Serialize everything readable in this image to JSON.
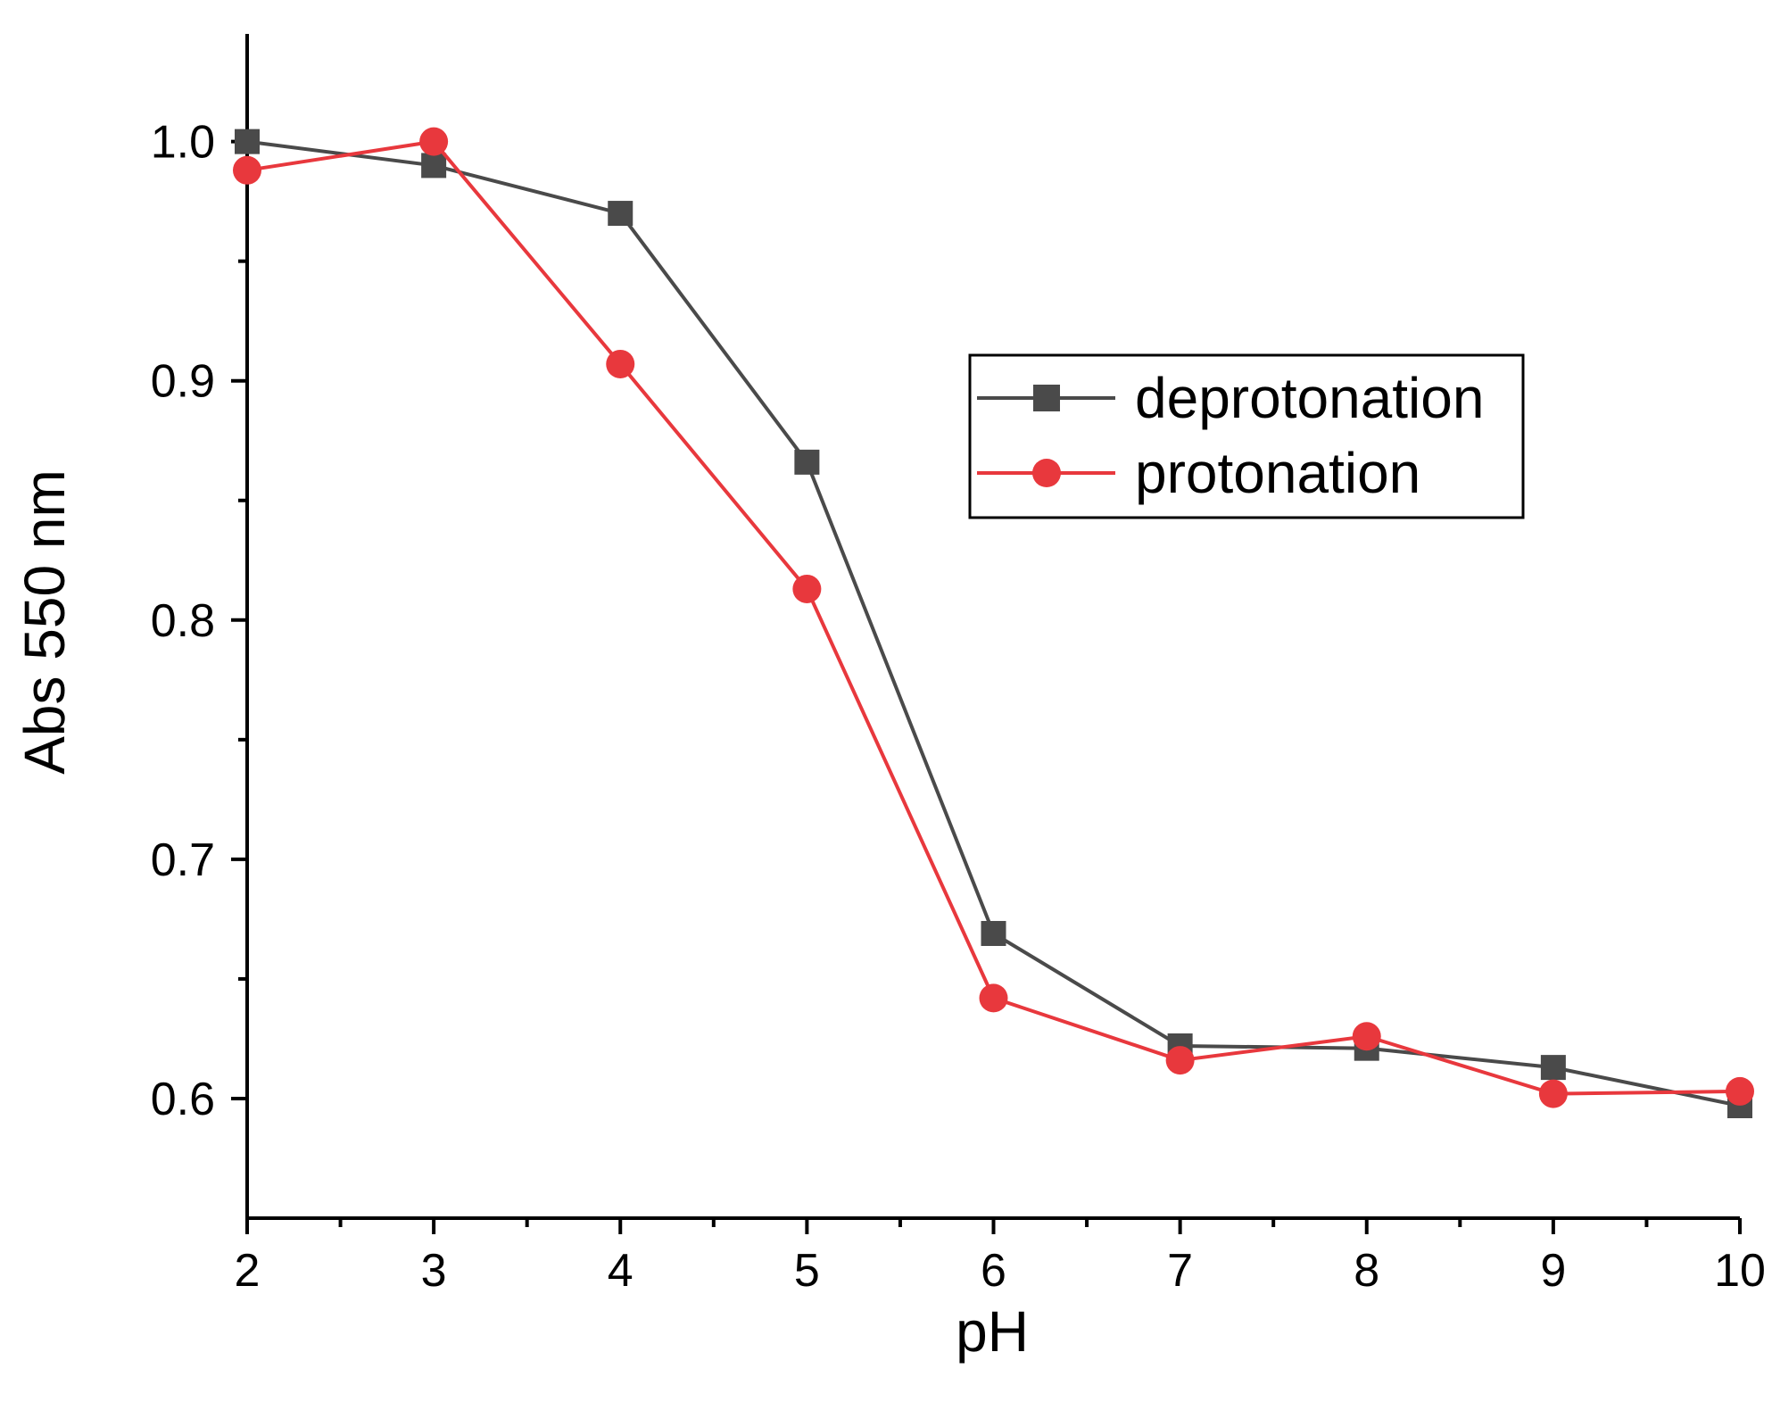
{
  "chart_data": {
    "type": "line",
    "xlabel": "pH",
    "ylabel": "Abs 550 nm",
    "xlim": [
      2,
      10
    ],
    "ylim": [
      0.55,
      1.045
    ],
    "x_ticks": [
      2,
      3,
      4,
      5,
      6,
      7,
      8,
      9,
      10
    ],
    "x_tick_labels": [
      "2",
      "3",
      "4",
      "5",
      "6",
      "7",
      "8",
      "9",
      "10"
    ],
    "y_ticks": [
      0.6,
      0.7,
      0.8,
      0.9,
      1.0
    ],
    "y_tick_labels": [
      "0.6",
      "0.7",
      "0.8",
      "0.9",
      "1.0"
    ],
    "x_minor_ticks": [
      2.5,
      3.5,
      4.5,
      5.5,
      6.5,
      7.5,
      8.5,
      9.5
    ],
    "y_minor_ticks": [
      0.65,
      0.75,
      0.85,
      0.95
    ],
    "grid": false,
    "legend_position": "top-right",
    "series": [
      {
        "name": "deprotonation",
        "color": "#4a4a4a",
        "marker": "square",
        "x": [
          2,
          3,
          4,
          5,
          6,
          7,
          8,
          9,
          10
        ],
        "y": [
          1.0,
          0.99,
          0.97,
          0.866,
          0.669,
          0.622,
          0.621,
          0.613,
          0.597
        ]
      },
      {
        "name": "protonation",
        "color": "#e8383d",
        "marker": "circle",
        "x": [
          2,
          3,
          4,
          5,
          6,
          7,
          8,
          9,
          10
        ],
        "y": [
          0.988,
          1.0,
          0.907,
          0.813,
          0.642,
          0.616,
          0.626,
          0.602,
          0.603
        ]
      }
    ]
  }
}
